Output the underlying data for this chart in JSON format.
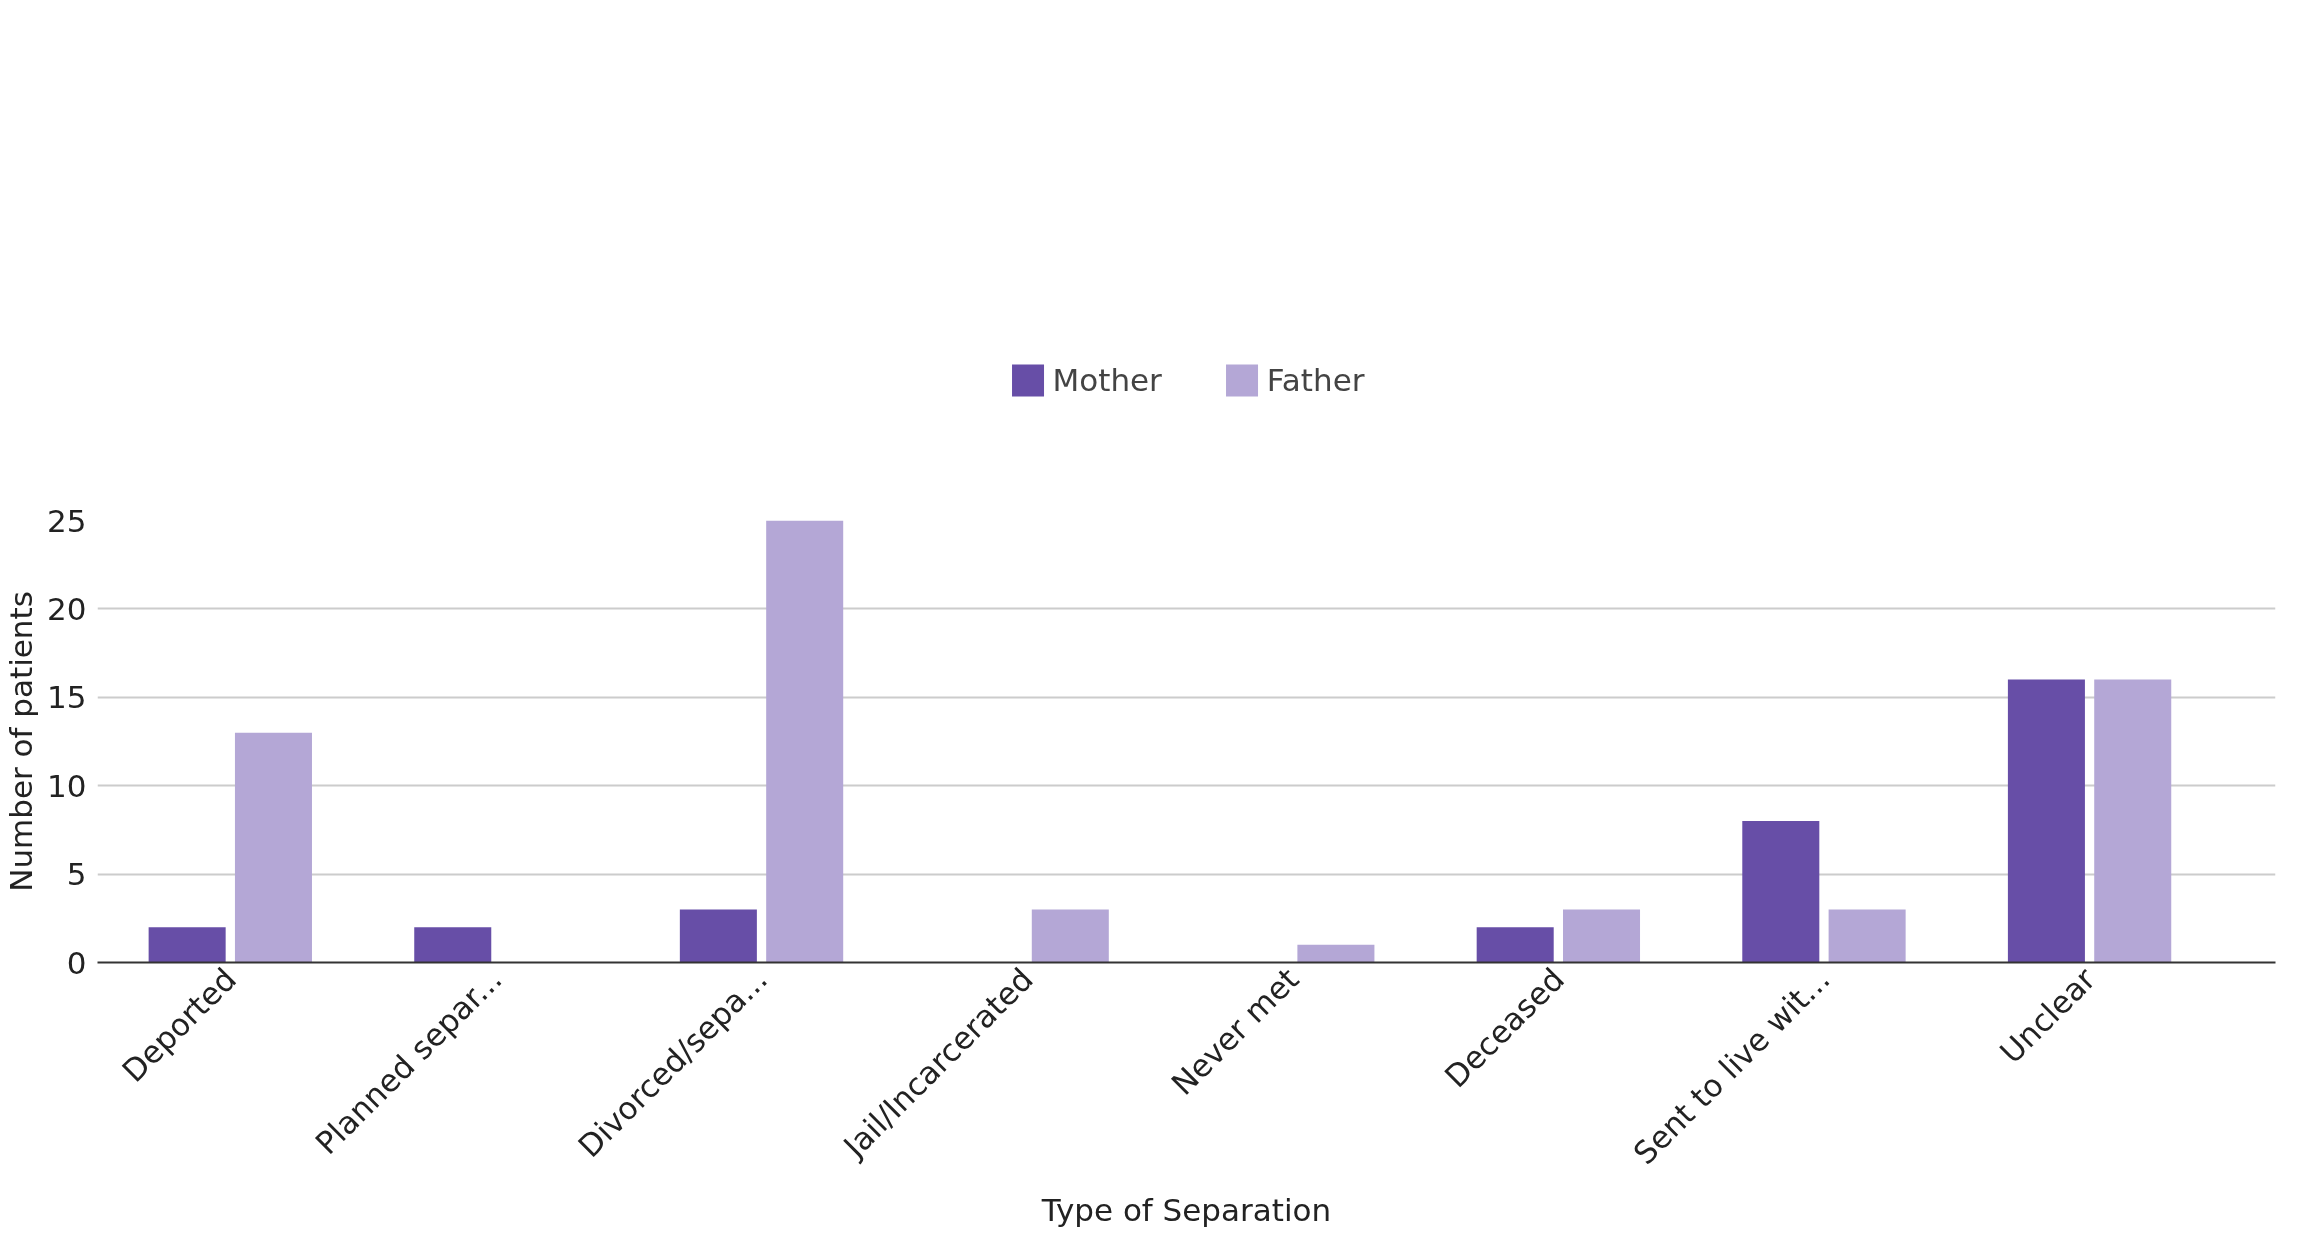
{
  "chart_data": {
    "type": "bar",
    "xlabel": "Type of Separation",
    "ylabel": "Number of patients",
    "categories": [
      "Deported",
      "Planned separ...",
      "Divorced/sepa...",
      "Jail/Incarcerated",
      "Never met",
      "Deceased",
      "Sent to live wit...",
      "Unclear"
    ],
    "series": [
      {
        "name": "Mother",
        "color": "#674ea7",
        "values": [
          2,
          2,
          3,
          0,
          0,
          2,
          8,
          16
        ]
      },
      {
        "name": "Father",
        "color": "#b4a7d6",
        "values": [
          13,
          0,
          25,
          3,
          1,
          3,
          3,
          16
        ]
      }
    ],
    "ylim": [
      0,
      25
    ],
    "yticks": [
      0,
      5,
      10,
      15,
      20,
      25
    ],
    "grid": "y",
    "legend": "top"
  }
}
